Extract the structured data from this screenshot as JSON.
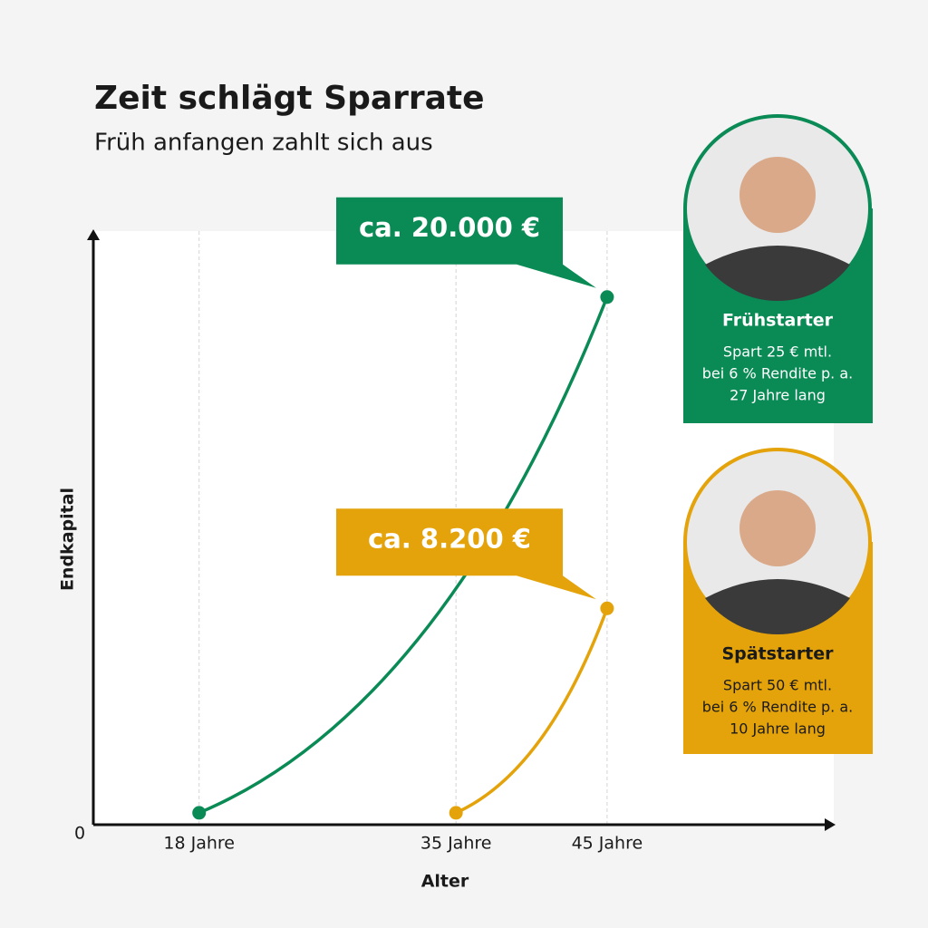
{
  "chart_data": {
    "type": "line",
    "title": "Zeit schlägt Sparrate",
    "subtitle": "Früh anfangen zahlt sich aus",
    "x_label": "Alter",
    "y_label": "Endkapital",
    "xlim": [
      11,
      60
    ],
    "xticks": [
      {
        "value": 18,
        "label": "18 Jahre"
      },
      {
        "value": 35,
        "label": "35 Jahre"
      },
      {
        "value": 45,
        "label": "45 Jahre"
      }
    ],
    "ylim": [
      0,
      22500
    ],
    "yticks": [
      0
    ],
    "grid": true,
    "series": [
      {
        "name": "Frühstarter",
        "color": "#0a8a55",
        "x": [
          18,
          45
        ],
        "values": [
          450,
          20000
        ],
        "value_labels": [
          null,
          "ca. 20.000 €"
        ],
        "description": [
          "Spart 25 € mtl.",
          "bei 6 % Rendite p. a.",
          "27 Jahre lang"
        ]
      },
      {
        "name": "Spätstarter",
        "color": "#e4a30a",
        "x": [
          35,
          45
        ],
        "values": [
          450,
          8200
        ],
        "value_labels": [
          null,
          "ca. 8.200 €"
        ],
        "description": [
          "Spart 50 € mtl.",
          "bei 6 % Rendite p. a.",
          "10 Jahre lang"
        ]
      }
    ]
  }
}
